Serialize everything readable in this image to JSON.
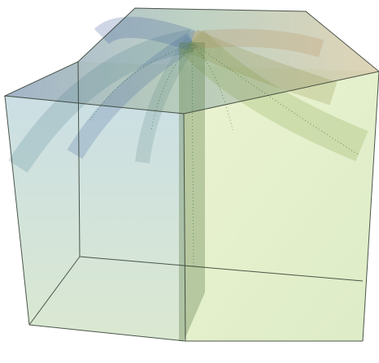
{
  "scene": {
    "subject": "translucent-3d-box-with-curved-sheets",
    "colors": {
      "background": "#ffffff",
      "edge": "#2f3a2f",
      "sheet_blue": "#3f5f9a",
      "sheet_teal": "#4f8a8a",
      "sheet_green": "#6f9a3a",
      "sheet_olive": "#8a8a3a",
      "face_left_top": "#b9d3df",
      "face_left_bottom": "#cfe1c4",
      "face_right_top": "#e6f0c2",
      "face_right_bottom": "#d3e6b6"
    }
  }
}
